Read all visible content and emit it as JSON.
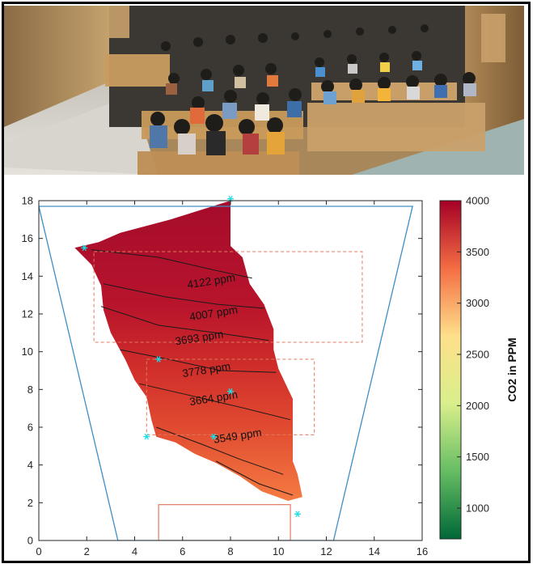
{
  "chart_data": {
    "type": "heatmap",
    "title": "",
    "xlabel": "",
    "ylabel": "",
    "xlim": [
      0,
      16
    ],
    "ylim": [
      0,
      18
    ],
    "x_ticks": [
      "0",
      "2",
      "4",
      "6",
      "8",
      "10",
      "12",
      "14",
      "16"
    ],
    "y_ticks": [
      "0",
      "2",
      "4",
      "6",
      "8",
      "10",
      "12",
      "14",
      "16",
      "18"
    ],
    "colorbar": {
      "label": "CO2 in PPM",
      "range": [
        700,
        4000
      ],
      "ticks": [
        "1000",
        "1500",
        "2000",
        "2500",
        "3000",
        "3500",
        "4000"
      ],
      "colormap": [
        "#006837",
        "#66bd63",
        "#d9ef8b",
        "#fee08b",
        "#f46d43",
        "#a50026"
      ]
    },
    "contour_labels": [
      {
        "text": "4122 ppm",
        "x": 7.2,
        "y": 13.7,
        "value": 4122
      },
      {
        "text": "4007 ppm",
        "x": 7.3,
        "y": 12.0,
        "value": 4007
      },
      {
        "text": "3693 ppm",
        "x": 6.7,
        "y": 10.7,
        "value": 3693
      },
      {
        "text": "3778 ppm",
        "x": 7.0,
        "y": 9.0,
        "value": 3778
      },
      {
        "text": "3664 ppm",
        "x": 7.3,
        "y": 7.5,
        "value": 3664
      },
      {
        "text": "3549 ppm",
        "x": 8.3,
        "y": 5.5,
        "value": 3549
      }
    ],
    "sensor_points": [
      {
        "x": 1.9,
        "y": 15.5
      },
      {
        "x": 8.0,
        "y": 18.1
      },
      {
        "x": 5.0,
        "y": 9.6
      },
      {
        "x": 8.0,
        "y": 7.9
      },
      {
        "x": 4.5,
        "y": 5.5
      },
      {
        "x": 7.3,
        "y": 5.5
      },
      {
        "x": 10.8,
        "y": 1.4
      }
    ],
    "room_outline": [
      [
        0,
        17.7
      ],
      [
        15.6,
        17.7
      ],
      [
        12.3,
        0
      ],
      [
        3.3,
        0
      ]
    ],
    "dashed_regions": [
      {
        "x": [
          2.3,
          13.5
        ],
        "y": [
          10.5,
          15.3
        ]
      },
      {
        "x": [
          4.5,
          11.5
        ],
        "y": [
          5.6,
          9.6
        ]
      }
    ],
    "podium": {
      "x": [
        5.0,
        10.5
      ],
      "y": [
        0,
        1.9
      ]
    },
    "heat_region": [
      [
        1.5,
        15.5
      ],
      [
        2.5,
        15.8
      ],
      [
        3.4,
        16.3
      ],
      [
        5.5,
        17.0
      ],
      [
        8.0,
        18.0
      ],
      [
        8.0,
        15.6
      ],
      [
        8.5,
        15.0
      ],
      [
        8.8,
        13.6
      ],
      [
        9.4,
        12.5
      ],
      [
        9.8,
        11.2
      ],
      [
        9.8,
        10.1
      ],
      [
        10.0,
        9.1
      ],
      [
        10.6,
        7.5
      ],
      [
        10.6,
        4.2
      ],
      [
        10.8,
        3.5
      ],
      [
        11.0,
        2.3
      ],
      [
        10.4,
        2.1
      ],
      [
        9.3,
        2.6
      ],
      [
        8.4,
        3.4
      ],
      [
        7.4,
        4.1
      ],
      [
        6.5,
        4.6
      ],
      [
        5.7,
        5.2
      ],
      [
        4.9,
        5.5
      ],
      [
        4.7,
        6.4
      ],
      [
        4.5,
        7.6
      ],
      [
        4.0,
        8.5
      ],
      [
        3.6,
        9.6
      ],
      [
        3.0,
        11.0
      ],
      [
        2.7,
        12.2
      ],
      [
        2.6,
        13.5
      ],
      [
        2.2,
        14.6
      ]
    ],
    "contour_lines": [
      [
        [
          2.2,
          15.4
        ],
        [
          5.0,
          15.0
        ],
        [
          7.4,
          14.3
        ],
        [
          8.9,
          13.9
        ]
      ],
      [
        [
          2.7,
          13.6
        ],
        [
          5.3,
          12.9
        ],
        [
          7.5,
          12.5
        ],
        [
          9.4,
          12.3
        ]
      ],
      [
        [
          2.6,
          12.4
        ],
        [
          5.0,
          11.4
        ],
        [
          7.4,
          11.0
        ],
        [
          9.6,
          10.6
        ]
      ],
      [
        [
          3.4,
          10.1
        ],
        [
          5.4,
          9.6
        ],
        [
          7.6,
          9.0
        ],
        [
          9.9,
          8.9
        ]
      ],
      [
        [
          4.2,
          8.3
        ],
        [
          6.6,
          7.6
        ],
        [
          8.6,
          7.0
        ],
        [
          10.5,
          6.4
        ]
      ],
      [
        [
          4.9,
          6.0
        ],
        [
          6.8,
          5.1
        ],
        [
          8.4,
          4.3
        ],
        [
          10.2,
          3.5
        ]
      ],
      [
        [
          7.4,
          4.2
        ],
        [
          9.2,
          3.0
        ],
        [
          10.6,
          2.4
        ]
      ]
    ],
    "grid": false
  }
}
